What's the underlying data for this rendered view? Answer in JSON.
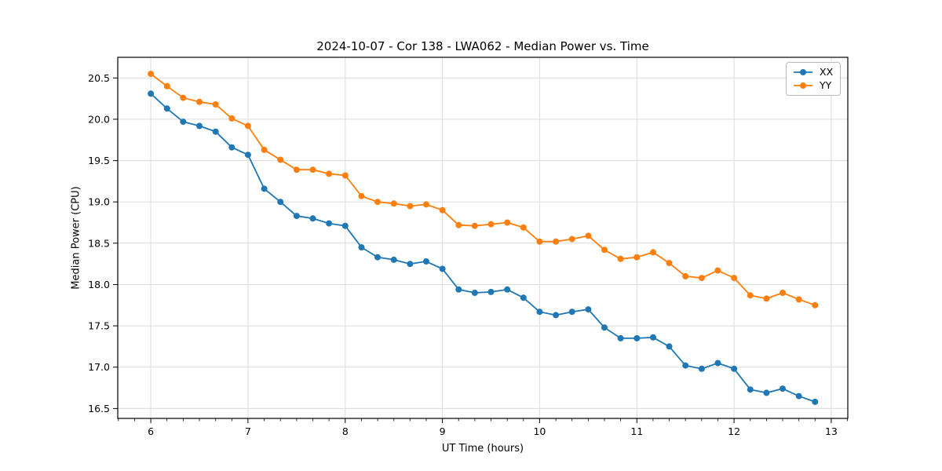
{
  "title": "2024-10-07 - Cor 138 - LWA062 - Median Power vs. Time",
  "chart_data": {
    "type": "line",
    "title": "2024-10-07 - Cor 138 - LWA062 - Median Power vs. Time",
    "xlabel": "UT Time (hours)",
    "ylabel": "Median Power (CPU)",
    "xlim": [
      5.66,
      13.17
    ],
    "ylim": [
      16.38,
      20.75
    ],
    "x_major_ticks": [
      6,
      7,
      8,
      9,
      10,
      11,
      12,
      13
    ],
    "x_minor_step_hours": 0.1667,
    "y_ticks": [
      16.5,
      17.0,
      17.5,
      18.0,
      18.5,
      19.0,
      19.5,
      20.0,
      20.5
    ],
    "grid": true,
    "grid_color": "#dcdcdc",
    "legend_position": "top-right",
    "marker": "circle",
    "x": [
      6.0,
      6.167,
      6.333,
      6.5,
      6.667,
      6.833,
      7.0,
      7.167,
      7.333,
      7.5,
      7.667,
      7.833,
      8.0,
      8.167,
      8.333,
      8.5,
      8.667,
      8.833,
      9.0,
      9.167,
      9.333,
      9.5,
      9.667,
      9.833,
      10.0,
      10.167,
      10.333,
      10.5,
      10.667,
      10.833,
      11.0,
      11.167,
      11.333,
      11.5,
      11.667,
      11.833,
      12.0,
      12.167,
      12.333,
      12.5,
      12.667,
      12.833
    ],
    "series": [
      {
        "name": "XX",
        "color": "#1f77b4",
        "values": [
          20.31,
          20.13,
          19.97,
          19.92,
          19.85,
          19.66,
          19.57,
          19.16,
          19.0,
          18.83,
          18.8,
          18.74,
          18.71,
          18.45,
          18.33,
          18.3,
          18.25,
          18.28,
          18.19,
          17.94,
          17.9,
          17.91,
          17.94,
          17.84,
          17.67,
          17.63,
          17.67,
          17.7,
          17.48,
          17.35,
          17.35,
          17.36,
          17.25,
          17.02,
          16.98,
          17.05,
          16.98,
          16.73,
          16.69,
          16.74,
          16.65,
          16.58
        ]
      },
      {
        "name": "YY",
        "color": "#ff7f0e",
        "values": [
          20.55,
          20.4,
          20.26,
          20.21,
          20.18,
          20.01,
          19.92,
          19.63,
          19.51,
          19.39,
          19.39,
          19.34,
          19.32,
          19.07,
          19.0,
          18.98,
          18.95,
          18.97,
          18.9,
          18.72,
          18.71,
          18.73,
          18.75,
          18.69,
          18.52,
          18.52,
          18.55,
          18.59,
          18.42,
          18.31,
          18.33,
          18.39,
          18.26,
          18.1,
          18.08,
          18.17,
          18.08,
          17.87,
          17.83,
          17.9,
          17.82,
          17.75
        ]
      }
    ]
  }
}
